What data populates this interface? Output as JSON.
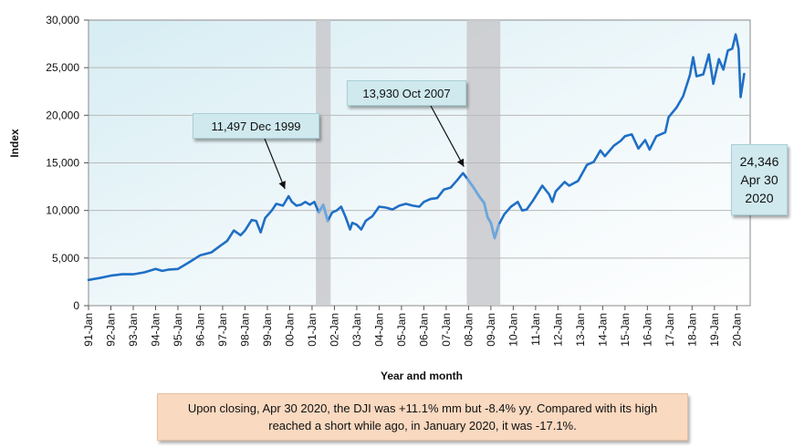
{
  "chart_data": {
    "type": "line",
    "ylabel": "Index",
    "xlabel": "Year and month",
    "ylim": [
      0,
      30000
    ],
    "y_ticks": [
      "0",
      "5,000",
      "10,000",
      "15,000",
      "20,000",
      "25,000",
      "30,000"
    ],
    "categories": [
      "91-Jan",
      "92-Jan",
      "93-Jan",
      "94-Jan",
      "95-Jan",
      "96-Jan",
      "97-Jan",
      "98-Jan",
      "99-Jan",
      "00-Jan",
      "01-Jan",
      "02-Jan",
      "03-Jan",
      "04-Jan",
      "05-Jan",
      "06-Jan",
      "07-Jan",
      "08-Jan",
      "09-Jan",
      "10-Jan",
      "11-Jan",
      "12-Jan",
      "13-Jan",
      "14-Jan",
      "15-Jan",
      "16-Jan",
      "17-Jan",
      "18-Jan",
      "19-Jan",
      "20-Jan"
    ],
    "grid": true,
    "recession_shading": [
      {
        "start": 2001.17,
        "end": 2001.83
      },
      {
        "start": 2007.92,
        "end": 2009.42
      }
    ],
    "series": [
      {
        "color": "#1f6fc5",
        "points": [
          [
            1991.0,
            2700
          ],
          [
            1991.5,
            2900
          ],
          [
            1992.0,
            3150
          ],
          [
            1992.5,
            3300
          ],
          [
            1993.0,
            3300
          ],
          [
            1993.5,
            3500
          ],
          [
            1994.0,
            3850
          ],
          [
            1994.3,
            3650
          ],
          [
            1994.6,
            3800
          ],
          [
            1995.0,
            3850
          ],
          [
            1995.5,
            4550
          ],
          [
            1996.0,
            5300
          ],
          [
            1996.5,
            5600
          ],
          [
            1996.9,
            6300
          ],
          [
            1997.2,
            6800
          ],
          [
            1997.5,
            7900
          ],
          [
            1997.8,
            7400
          ],
          [
            1998.0,
            7900
          ],
          [
            1998.3,
            9000
          ],
          [
            1998.5,
            8900
          ],
          [
            1998.7,
            7700
          ],
          [
            1998.9,
            9200
          ],
          [
            1999.2,
            10000
          ],
          [
            1999.4,
            10700
          ],
          [
            1999.7,
            10500
          ],
          [
            1999.95,
            11497
          ],
          [
            2000.1,
            10900
          ],
          [
            2000.3,
            10500
          ],
          [
            2000.5,
            10600
          ],
          [
            2000.7,
            10900
          ],
          [
            2000.9,
            10600
          ],
          [
            2001.1,
            10900
          ],
          [
            2001.3,
            9800
          ],
          [
            2001.5,
            10600
          ],
          [
            2001.7,
            8900
          ],
          [
            2001.9,
            9800
          ],
          [
            2002.1,
            10000
          ],
          [
            2002.3,
            10400
          ],
          [
            2002.5,
            9300
          ],
          [
            2002.7,
            8000
          ],
          [
            2002.8,
            8700
          ],
          [
            2003.0,
            8500
          ],
          [
            2003.2,
            8000
          ],
          [
            2003.4,
            8900
          ],
          [
            2003.7,
            9400
          ],
          [
            2004.0,
            10400
          ],
          [
            2004.3,
            10300
          ],
          [
            2004.6,
            10100
          ],
          [
            2004.9,
            10500
          ],
          [
            2005.2,
            10700
          ],
          [
            2005.5,
            10500
          ],
          [
            2005.8,
            10400
          ],
          [
            2006.0,
            10900
          ],
          [
            2006.3,
            11200
          ],
          [
            2006.6,
            11300
          ],
          [
            2006.9,
            12200
          ],
          [
            2007.2,
            12400
          ],
          [
            2007.5,
            13200
          ],
          [
            2007.75,
            13930
          ],
          [
            2007.95,
            13300
          ],
          [
            2008.2,
            12500
          ],
          [
            2008.5,
            11400
          ],
          [
            2008.7,
            10800
          ],
          [
            2008.85,
            9300
          ],
          [
            2009.0,
            8700
          ],
          [
            2009.17,
            7100
          ],
          [
            2009.35,
            8500
          ],
          [
            2009.6,
            9600
          ],
          [
            2009.9,
            10400
          ],
          [
            2010.2,
            10900
          ],
          [
            2010.4,
            10000
          ],
          [
            2010.6,
            10100
          ],
          [
            2010.9,
            11100
          ],
          [
            2011.3,
            12600
          ],
          [
            2011.6,
            11700
          ],
          [
            2011.75,
            10900
          ],
          [
            2011.9,
            12000
          ],
          [
            2012.3,
            13000
          ],
          [
            2012.5,
            12600
          ],
          [
            2012.9,
            13100
          ],
          [
            2013.3,
            14800
          ],
          [
            2013.6,
            15100
          ],
          [
            2013.9,
            16300
          ],
          [
            2014.1,
            15700
          ],
          [
            2014.5,
            16800
          ],
          [
            2014.8,
            17300
          ],
          [
            2015.0,
            17800
          ],
          [
            2015.3,
            18000
          ],
          [
            2015.6,
            16500
          ],
          [
            2015.9,
            17400
          ],
          [
            2016.1,
            16400
          ],
          [
            2016.4,
            17800
          ],
          [
            2016.8,
            18200
          ],
          [
            2016.95,
            19800
          ],
          [
            2017.3,
            20800
          ],
          [
            2017.6,
            22000
          ],
          [
            2017.9,
            24200
          ],
          [
            2018.05,
            26100
          ],
          [
            2018.2,
            24100
          ],
          [
            2018.5,
            24300
          ],
          [
            2018.75,
            26400
          ],
          [
            2018.95,
            23300
          ],
          [
            2019.2,
            25900
          ],
          [
            2019.4,
            24800
          ],
          [
            2019.6,
            26800
          ],
          [
            2019.8,
            27000
          ],
          [
            2019.95,
            28500
          ],
          [
            2020.08,
            27000
          ],
          [
            2020.17,
            21900
          ],
          [
            2020.33,
            24346
          ]
        ]
      }
    ],
    "annotations": [
      {
        "text": "11,497 Dec 1999",
        "x": 1999.95,
        "y": 11497
      },
      {
        "text": "13,930 Oct 2007",
        "x": 2007.75,
        "y": 13930
      },
      {
        "lines": [
          "24,346",
          "Apr 30",
          "2020"
        ],
        "x": 2020.33,
        "y": 24346
      }
    ]
  },
  "note": "Upon closing, Apr 30 2020, the DJI was +11.1% mm but -8.4% yy. Compared with its high reached a short while ago, in January 2020, it was  -17.1%."
}
